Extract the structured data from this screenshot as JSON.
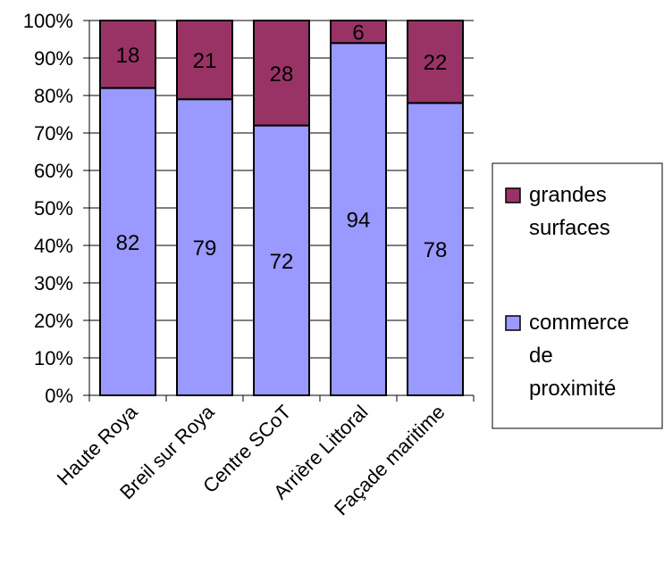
{
  "chart_data": {
    "type": "bar",
    "stacked": true,
    "percent": true,
    "categories": [
      "Haute Roya",
      "Breil sur Roya",
      "Centre SCoT",
      "Arrière Littoral",
      "Façade maritime"
    ],
    "series": [
      {
        "name": "commerce de proximité",
        "values": [
          82,
          79,
          72,
          94,
          78
        ],
        "color": "#9999ff"
      },
      {
        "name": "grandes surfaces",
        "values": [
          18,
          21,
          28,
          6,
          22
        ],
        "color": "#993366"
      }
    ],
    "ylim": [
      0,
      100
    ],
    "yticks": [
      "0%",
      "10%",
      "20%",
      "30%",
      "40%",
      "50%",
      "60%",
      "70%",
      "80%",
      "90%",
      "100%"
    ],
    "grid": true,
    "legend": {
      "position": "right",
      "items": [
        {
          "lines": [
            "grandes",
            "surfaces"
          ],
          "color": "#993366"
        },
        {
          "lines": [
            "commerce",
            "de",
            "proximité"
          ],
          "color": "#9999ff"
        }
      ]
    }
  }
}
